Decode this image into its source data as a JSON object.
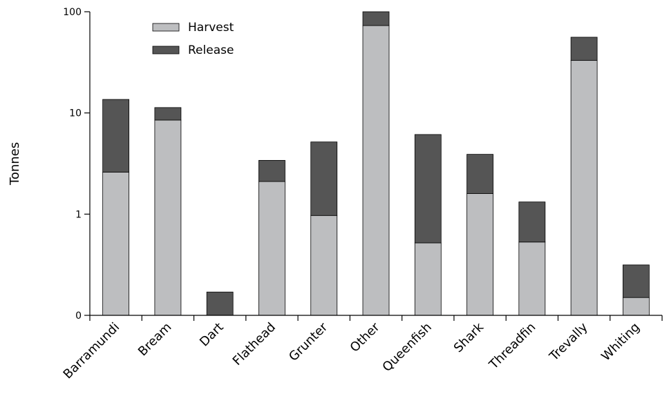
{
  "chart_data": {
    "type": "bar",
    "stacked": true,
    "yscale": "log",
    "ylabel": "Tonnes",
    "ylim": [
      0.1,
      100
    ],
    "yticks": [
      {
        "value": 0.1,
        "label": "0"
      },
      {
        "value": 1,
        "label": "1"
      },
      {
        "value": 10,
        "label": "10"
      },
      {
        "value": 100,
        "label": "100"
      }
    ],
    "categories": [
      "Barramundi",
      "Bream",
      "Dart",
      "Flathead",
      "Grunter",
      "Other",
      "Queenfish",
      "Shark",
      "Threadfin",
      "Trevally",
      "Whiting"
    ],
    "series": [
      {
        "name": "Harvest",
        "color": "#bdbec0",
        "values": [
          2.6,
          8.5,
          0,
          2.1,
          0.97,
          73,
          0.52,
          1.6,
          0.53,
          33,
          0.15
        ]
      },
      {
        "name": "Release",
        "color": "#555555",
        "values": [
          11.0,
          2.8,
          0.17,
          1.3,
          4.2,
          27,
          5.6,
          2.3,
          0.79,
          23,
          0.165
        ]
      }
    ],
    "legend_position": "top-left",
    "grid": false
  }
}
